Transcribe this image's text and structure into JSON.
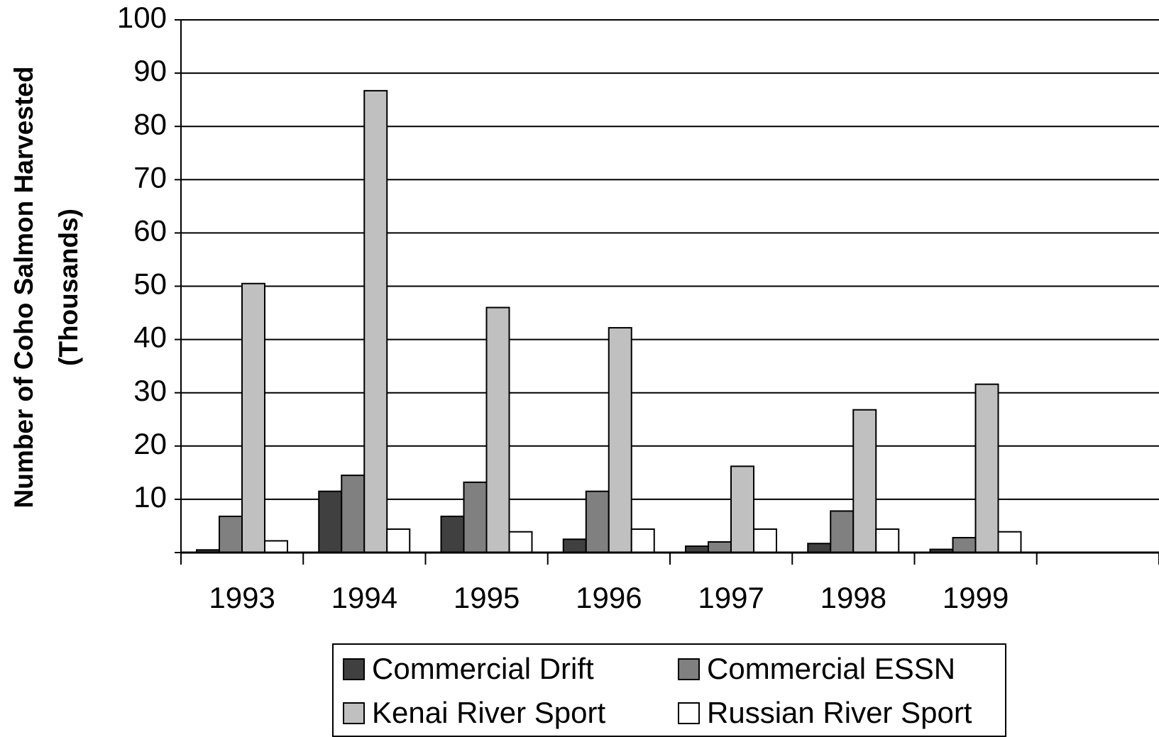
{
  "chart_data": {
    "type": "bar",
    "y_label": [
      "Number of Coho Salmon Harvested",
      "(Thousands)"
    ],
    "categories": [
      "1993",
      "1994",
      "1995",
      "1996",
      "1997",
      "1998",
      "1999",
      null
    ],
    "series": [
      {
        "name": "Commercial Drift",
        "color": "#404040",
        "values": [
          0.5,
          11.5,
          6.8,
          2.5,
          1.2,
          1.7,
          0.6,
          null
        ]
      },
      {
        "name": "Commercial ESSN",
        "color": "#808080",
        "values": [
          6.8,
          14.5,
          13.2,
          11.5,
          2.0,
          7.8,
          2.8,
          null
        ]
      },
      {
        "name": "Kenai River Sport",
        "color": "#c0c0c0",
        "values": [
          50.5,
          86.7,
          46.0,
          42.2,
          16.2,
          26.8,
          31.6,
          null
        ]
      },
      {
        "name": "Russian River Sport",
        "color": "#ffffff",
        "values": [
          2.2,
          4.4,
          3.9,
          4.4,
          4.4,
          4.4,
          3.9,
          null
        ]
      }
    ],
    "ylim": [
      0,
      100
    ],
    "yticks": [
      10,
      20,
      30,
      40,
      50,
      60,
      70,
      80,
      90,
      100
    ],
    "grid": true
  }
}
